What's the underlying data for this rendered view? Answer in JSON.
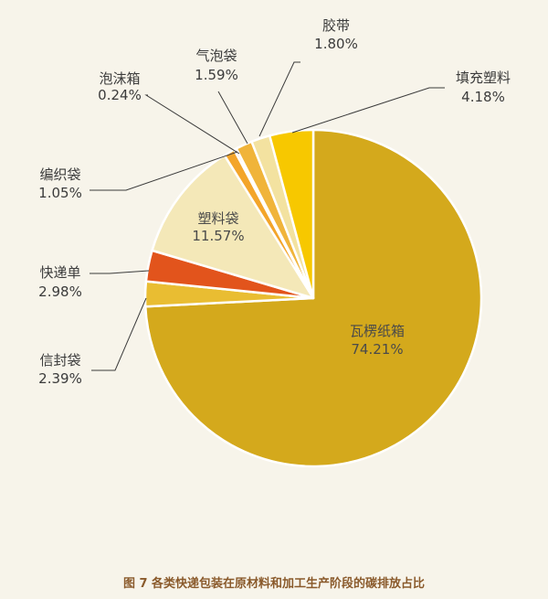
{
  "chart_data": {
    "type": "pie",
    "title": "图 7  各类快递包装在原材料和加工生产阶段的碳排放占比",
    "slices": [
      {
        "name": "瓦楞纸箱",
        "value": 74.21,
        "label": "74.21%",
        "color": "#d4a91c"
      },
      {
        "name": "信封袋",
        "value": 2.39,
        "label": "2.39%",
        "color": "#e9bd32"
      },
      {
        "name": "快递单",
        "value": 2.98,
        "label": "2.98%",
        "color": "#e2541c"
      },
      {
        "name": "塑料袋",
        "value": 11.57,
        "label": "11.57%",
        "color": "#f4e8b8"
      },
      {
        "name": "编织袋",
        "value": 1.05,
        "label": "1.05%",
        "color": "#f3a52a"
      },
      {
        "name": "泡沫箱",
        "value": 0.24,
        "label": "0.24%",
        "color": "#d86a1f"
      },
      {
        "name": "气泡袋",
        "value": 1.59,
        "label": "1.59%",
        "color": "#f0b43a"
      },
      {
        "name": "胶带",
        "value": 1.8,
        "label": "1.80%",
        "color": "#f3e2a0"
      },
      {
        "name": "填充塑料",
        "value": 4.18,
        "label": "4.18%",
        "color": "#f7c800"
      }
    ]
  }
}
